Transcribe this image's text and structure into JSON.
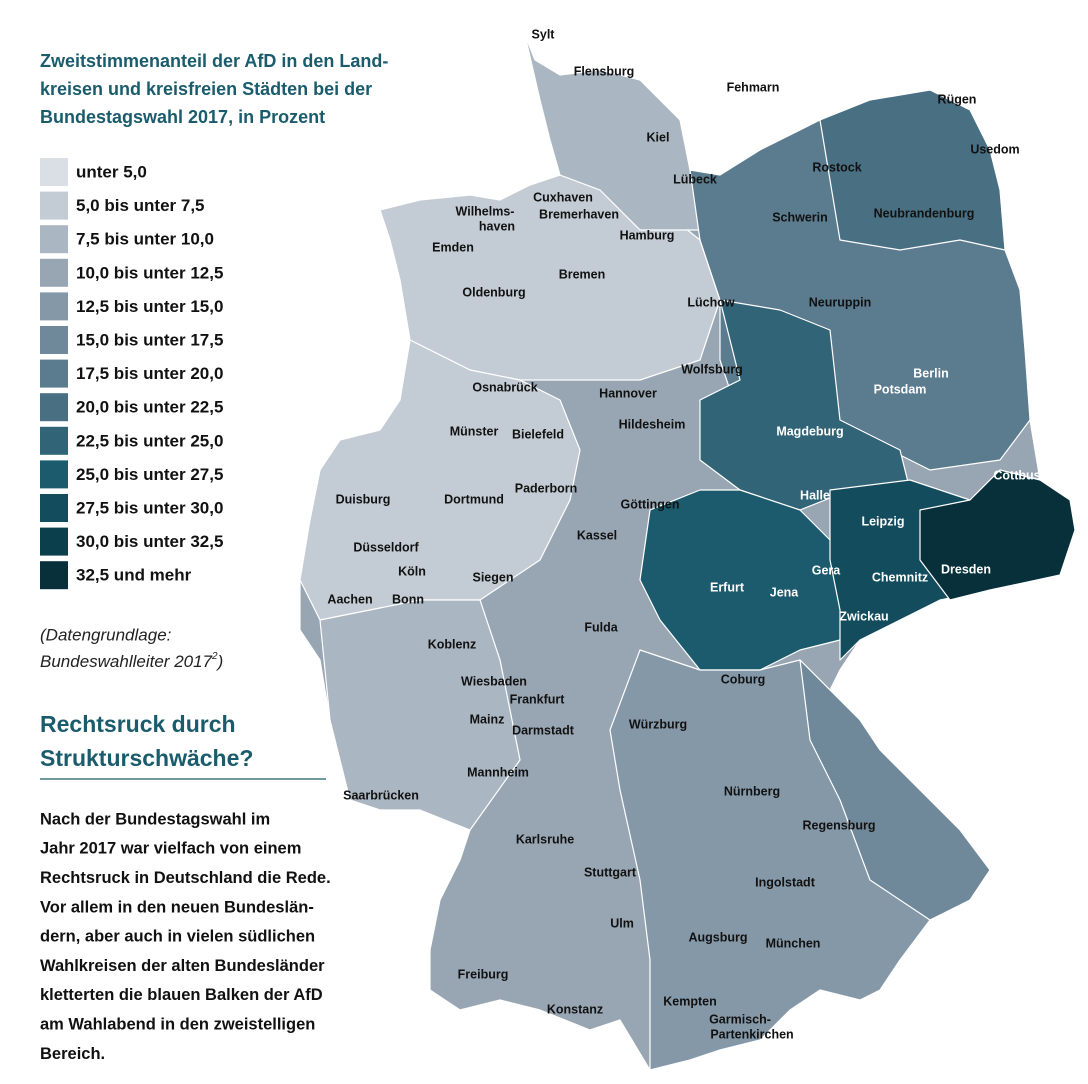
{
  "title": [
    "Zweitstimmenanteil der AfD in den Land-",
    "kreisen und kreisfreien Städten bei der",
    "Bundestagswahl 2017, in Prozent"
  ],
  "legend": [
    {
      "label": "unter 5,0",
      "color": "#d9dfe4"
    },
    {
      "label": "5,0 bis unter 7,5",
      "color": "#c3ccd4"
    },
    {
      "label": "7,5 bis unter 10,0",
      "color": "#aab6c1"
    },
    {
      "label": "10,0 bis unter 12,5",
      "color": "#98a6b3"
    },
    {
      "label": "12,5 bis unter 15,0",
      "color": "#8598a8"
    },
    {
      "label": "15,0 bis unter 17,5",
      "color": "#6f889a"
    },
    {
      "label": "17,5 bis unter 20,0",
      "color": "#5b7b8e"
    },
    {
      "label": "20,0 bis unter 22,5",
      "color": "#486f82"
    },
    {
      "label": "22,5 bis unter 25,0",
      "color": "#326477"
    },
    {
      "label": "25,0 bis unter 27,5",
      "color": "#1c5b6d"
    },
    {
      "label": "27,5 bis unter 30,0",
      "color": "#134c5c"
    },
    {
      "label": "30,0 bis unter 32,5",
      "color": "#0c3f4c"
    },
    {
      "label": "32,5 und mehr",
      "color": "#07303a"
    }
  ],
  "source": [
    "(Datengrundlage:",
    "Bundeswahlleiter 2017",
    "2",
    ")"
  ],
  "heading": [
    "Rechtsruck durch",
    "Strukturschwäche?"
  ],
  "paragraph": [
    "Nach der Bundestagswahl im",
    "Jahr 2017 war vielfach von einem",
    "Rechtsruck in Deutschland die Rede.",
    "Vor allem in den neuen Bundeslän-",
    "dern, aber auch in vielen südlichen",
    "Wahlkreisen der alten Bundesländer",
    "kletterten die blauen Balken der AfD",
    "am Wahlabend in den zweistelligen",
    "Bereich."
  ],
  "cities": [
    "Sylt",
    "Flensburg",
    "Fehmarn",
    "Rügen",
    "Kiel",
    "Usedom",
    "Rostock",
    "Lübeck",
    "Cuxhaven",
    [
      "Wilhelms-",
      "haven"
    ],
    "Bremerhaven",
    "Schwerin",
    "Neubrandenburg",
    "Emden",
    "Hamburg",
    "Bremen",
    "Oldenburg",
    "Lüchow",
    "Neuruppin",
    "Berlin",
    "Wolfsburg",
    "Osnabrück",
    "Hannover",
    "Potsdam",
    "Hildesheim",
    "Münster",
    "Bielefeld",
    "Magdeburg",
    "Cottbus",
    "Paderborn",
    "Halle",
    "Dortmund",
    "Duisburg",
    "Göttingen",
    "Leipzig",
    "Kassel",
    "Düsseldorf",
    "Dresden",
    "Köln",
    "Siegen",
    "Gera",
    "Chemnitz",
    "Erfurt",
    "Jena",
    "Aachen",
    "Bonn",
    "Zwickau",
    "Fulda",
    "Koblenz",
    "Coburg",
    "Wiesbaden",
    "Frankfurt",
    "Mainz",
    "Würzburg",
    "Darmstadt",
    "Mannheim",
    "Nürnberg",
    "Saarbrücken",
    "Regensburg",
    "Karlsruhe",
    "Stuttgart",
    "Ingolstadt",
    "Ulm",
    "Augsburg",
    "München",
    "Freiburg",
    "Kempten",
    "Konstanz",
    [
      "Garmisch-",
      "Partenkirchen"
    ]
  ]
}
